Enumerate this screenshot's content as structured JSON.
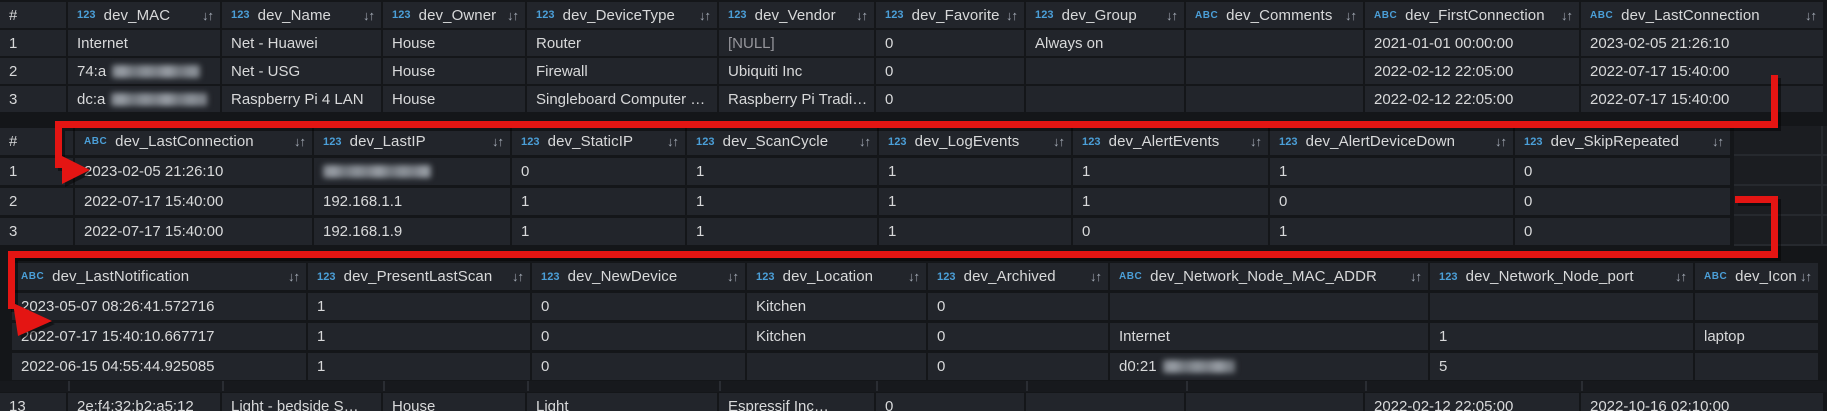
{
  "colors": {
    "canvas_bg": "#141619",
    "cell_bg": "#22252b",
    "text": "#d8d9da",
    "null_text": "#96969c",
    "field_type_badge_blue": "#4b9fd8",
    "sort_icon_gray": "#a2a9b4",
    "annotation_red": "#e41513"
  },
  "sort_icon": "↓↑",
  "tables": [
    {
      "id": "devices-overview",
      "columns": [
        {
          "badge": "",
          "label": "#"
        },
        {
          "badge": "123",
          "label": "dev_MAC"
        },
        {
          "badge": "123",
          "label": "dev_Name"
        },
        {
          "badge": "123",
          "label": "dev_Owner"
        },
        {
          "badge": "123",
          "label": "dev_DeviceType"
        },
        {
          "badge": "123",
          "label": "dev_Vendor"
        },
        {
          "badge": "123",
          "label": "dev_Favorite"
        },
        {
          "badge": "123",
          "label": "dev_Group"
        },
        {
          "badge": "ABC",
          "label": "dev_Comments"
        },
        {
          "badge": "ABC",
          "label": "dev_FirstConnection"
        },
        {
          "badge": "ABC",
          "label": "dev_LastConnection"
        }
      ],
      "rows": [
        [
          {
            "t": "1"
          },
          {
            "t": "Internet"
          },
          {
            "t": "Net - Huawei"
          },
          {
            "t": "House"
          },
          {
            "t": "Router"
          },
          {
            "t": "[NULL]",
            "dim": true
          },
          {
            "t": "0"
          },
          {
            "t": "Always on"
          },
          {
            "t": ""
          },
          {
            "t": "2021-01-01 00:00:00"
          },
          {
            "t": "2023-02-05 21:26:10"
          }
        ],
        [
          {
            "t": "2"
          },
          {
            "t": "74:a",
            "blur": 88
          },
          {
            "t": "Net - USG"
          },
          {
            "t": "House"
          },
          {
            "t": "Firewall"
          },
          {
            "t": "Ubiquiti Inc"
          },
          {
            "t": "0"
          },
          {
            "t": ""
          },
          {
            "t": ""
          },
          {
            "t": "2022-02-12 22:05:00"
          },
          {
            "t": "2022-07-17 15:40:00"
          }
        ],
        [
          {
            "t": "3"
          },
          {
            "t": "dc:a",
            "blur": 96
          },
          {
            "t": "Raspberry Pi 4 LAN"
          },
          {
            "t": "House"
          },
          {
            "t": "Singleboard Computer …"
          },
          {
            "t": "Raspberry Pi Tradi…"
          },
          {
            "t": "0"
          },
          {
            "t": ""
          },
          {
            "t": ""
          },
          {
            "t": "2022-02-12 22:05:00"
          },
          {
            "t": "2022-07-17 15:40:00"
          }
        ]
      ]
    },
    {
      "id": "devices-connection",
      "columns": [
        {
          "badge": "",
          "label": "#"
        },
        {
          "badge": "ABC",
          "label": "dev_LastConnection"
        },
        {
          "badge": "123",
          "label": "dev_LastIP"
        },
        {
          "badge": "123",
          "label": "dev_StaticIP"
        },
        {
          "badge": "123",
          "label": "dev_ScanCycle"
        },
        {
          "badge": "123",
          "label": "dev_LogEvents"
        },
        {
          "badge": "123",
          "label": "dev_AlertEvents"
        },
        {
          "badge": "123",
          "label": "dev_AlertDeviceDown"
        },
        {
          "badge": "123",
          "label": "dev_SkipRepeated"
        }
      ],
      "rows": [
        [
          {
            "t": "1"
          },
          {
            "t": "2023-02-05 21:26:10"
          },
          {
            "t": "",
            "blur": 108
          },
          {
            "t": "0"
          },
          {
            "t": "1"
          },
          {
            "t": "1"
          },
          {
            "t": "1"
          },
          {
            "t": "1"
          },
          {
            "t": "0"
          }
        ],
        [
          {
            "t": "2"
          },
          {
            "t": "2022-07-17 15:40:00"
          },
          {
            "t": "192.168.1.1"
          },
          {
            "t": "1"
          },
          {
            "t": "1"
          },
          {
            "t": "1"
          },
          {
            "t": "1"
          },
          {
            "t": "0"
          },
          {
            "t": "0"
          }
        ],
        [
          {
            "t": "3"
          },
          {
            "t": "2022-07-17 15:40:00"
          },
          {
            "t": "192.168.1.9"
          },
          {
            "t": "1"
          },
          {
            "t": "1"
          },
          {
            "t": "1"
          },
          {
            "t": "0"
          },
          {
            "t": "1"
          },
          {
            "t": "0"
          }
        ]
      ]
    },
    {
      "id": "devices-notification",
      "columns": [
        {
          "badge": "ABC",
          "label": "dev_LastNotification"
        },
        {
          "badge": "123",
          "label": "dev_PresentLastScan"
        },
        {
          "badge": "123",
          "label": "dev_NewDevice"
        },
        {
          "badge": "123",
          "label": "dev_Location"
        },
        {
          "badge": "123",
          "label": "dev_Archived"
        },
        {
          "badge": "ABC",
          "label": "dev_Network_Node_MAC_ADDR"
        },
        {
          "badge": "123",
          "label": "dev_Network_Node_port"
        },
        {
          "badge": "ABC",
          "label": "dev_Icon"
        }
      ],
      "rows": [
        [
          {
            "t": "2023-05-07 08:26:41.572716"
          },
          {
            "t": "1"
          },
          {
            "t": "0"
          },
          {
            "t": "Kitchen"
          },
          {
            "t": "0"
          },
          {
            "t": ""
          },
          {
            "t": ""
          },
          {
            "t": ""
          }
        ],
        [
          {
            "t": "2022-07-17 15:40:10.667717"
          },
          {
            "t": "1"
          },
          {
            "t": "0"
          },
          {
            "t": "Kitchen"
          },
          {
            "t": "0"
          },
          {
            "t": "Internet"
          },
          {
            "t": "1"
          },
          {
            "t": "laptop"
          }
        ],
        [
          {
            "t": "2022-06-15 04:55:44.925085"
          },
          {
            "t": "1"
          },
          {
            "t": "0"
          },
          {
            "t": ""
          },
          {
            "t": "0"
          },
          {
            "t": "d0:21",
            "blur": 72
          },
          {
            "t": "5"
          },
          {
            "t": ""
          }
        ]
      ]
    }
  ],
  "partial_row": [
    {
      "t": "13"
    },
    {
      "t": "2e:f4:32:b2:a5:12"
    },
    {
      "t": "Light - bedside S…"
    },
    {
      "t": "House"
    },
    {
      "t": "Light"
    },
    {
      "t": "Espressif Inc…"
    },
    {
      "t": "0"
    },
    {
      "t": ""
    },
    {
      "t": ""
    },
    {
      "t": "2022-02-12 22:05:00"
    },
    {
      "t": "2022-10-16 02:10:00"
    }
  ]
}
